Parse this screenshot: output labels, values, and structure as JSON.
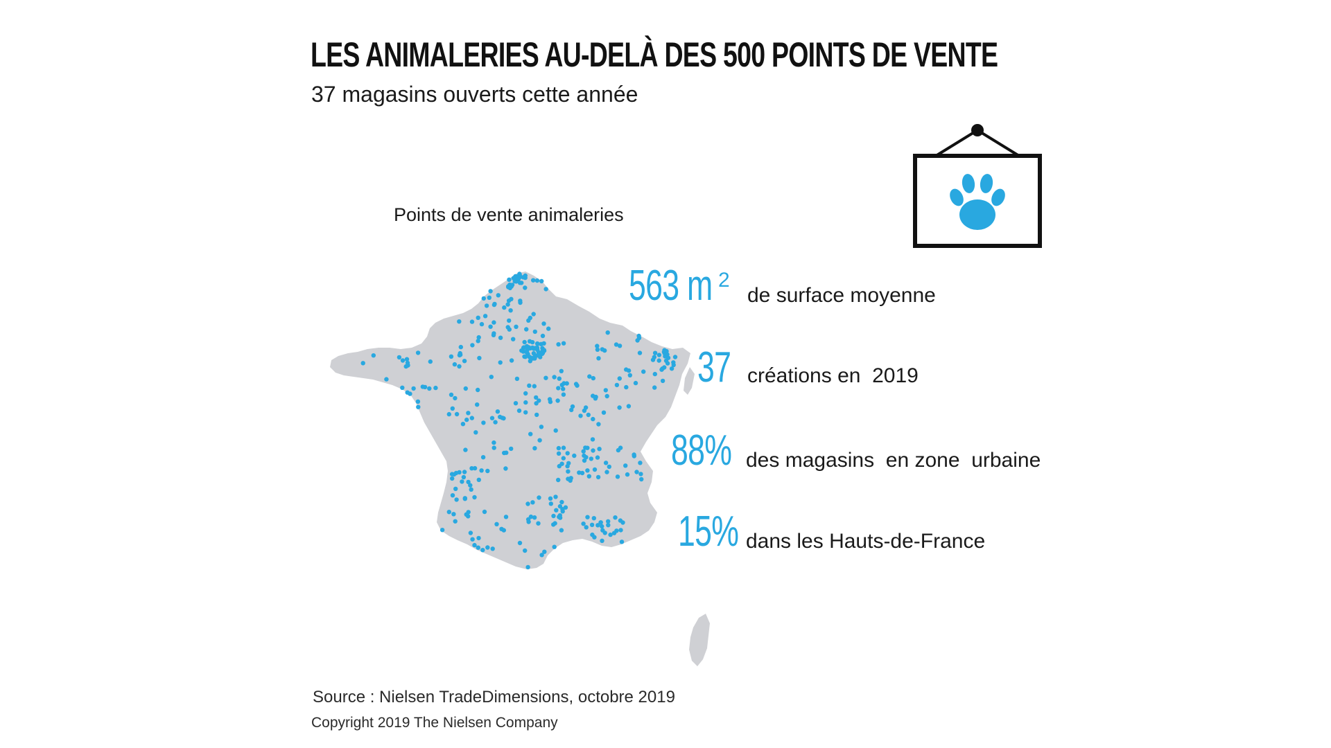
{
  "title": "LES ANIMALERIES AU-DELÀ DES 500 POINTS DE VENTE",
  "subtitle": "37 magasins ouverts cette année",
  "map": {
    "label": "Points de vente animaleries",
    "land_color": "#cfd0d4",
    "dot_color": "#29a8e0"
  },
  "sign": {
    "icon": "paw-icon",
    "paw_color": "#29a8e0",
    "frame_color": "#111111"
  },
  "stats": [
    {
      "value": "563 m",
      "superscript": "2",
      "description": "de surface moyenne"
    },
    {
      "value": "37",
      "description": "créations en  2019"
    },
    {
      "value": "88%",
      "description": "des magasins  en zone  urbaine"
    },
    {
      "value": "15%",
      "description": "dans les Hauts-de-France"
    }
  ],
  "accent_color": "#29a8e0",
  "source": "Source : Nielsen TradeDimensions, octobre 2019",
  "copyright": "Copyright 2019 The Nielsen Company"
}
